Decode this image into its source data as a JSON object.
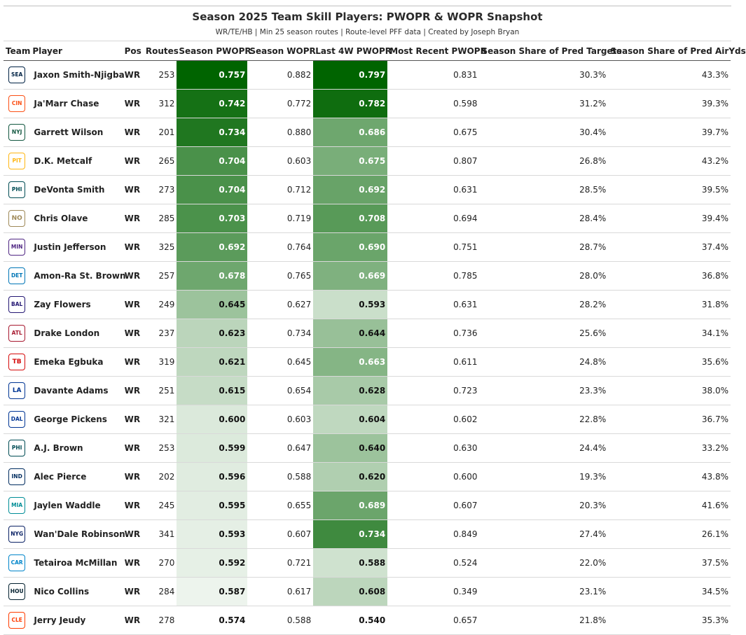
{
  "header": {
    "title": "Season 2025 Team Skill Players: PWOPR & WOPR Snapshot",
    "subtitle": "WR/TE/HB | Min 25 season routes | Route-level PFF data | Created by Joseph Bryan"
  },
  "columns": [
    "Team",
    "Player",
    "Pos",
    "Routes",
    "Season PWOPR",
    "Season WOPR",
    "Last 4W PWOPR",
    "Most Recent PWOPR",
    "Season Share of Pred Targets",
    "Season Share of Pred AirYds"
  ],
  "rows": [
    {
      "team_icon": "seahawks-logo-icon",
      "team_color": "#002244",
      "team_abbr": "SEA",
      "player": "Jaxon Smith-Njigba",
      "pos": "WR",
      "routes": "253",
      "season_pwopr": "0.757",
      "season_wopr": "0.882",
      "last4w_pwopr": "0.797",
      "recent_pwopr": "0.831",
      "share_targets": "30.3%",
      "share_airyds": "43.3%"
    },
    {
      "team_icon": "bengals-logo-icon",
      "team_color": "#FB4F14",
      "team_abbr": "CIN",
      "player": "Ja'Marr Chase",
      "pos": "WR",
      "routes": "312",
      "season_pwopr": "0.742",
      "season_wopr": "0.772",
      "last4w_pwopr": "0.782",
      "recent_pwopr": "0.598",
      "share_targets": "31.2%",
      "share_airyds": "39.3%"
    },
    {
      "team_icon": "jets-logo-icon",
      "team_color": "#125740",
      "team_abbr": "NYJ",
      "player": "Garrett Wilson",
      "pos": "WR",
      "routes": "201",
      "season_pwopr": "0.734",
      "season_wopr": "0.880",
      "last4w_pwopr": "0.686",
      "recent_pwopr": "0.675",
      "share_targets": "30.4%",
      "share_airyds": "39.7%"
    },
    {
      "team_icon": "steelers-logo-icon",
      "team_color": "#FFB612",
      "team_abbr": "PIT",
      "player": "D.K. Metcalf",
      "pos": "WR",
      "routes": "265",
      "season_pwopr": "0.704",
      "season_wopr": "0.603",
      "last4w_pwopr": "0.675",
      "recent_pwopr": "0.807",
      "share_targets": "26.8%",
      "share_airyds": "43.2%"
    },
    {
      "team_icon": "eagles-logo-icon",
      "team_color": "#004C54",
      "team_abbr": "PHI",
      "player": "DeVonta Smith",
      "pos": "WR",
      "routes": "273",
      "season_pwopr": "0.704",
      "season_wopr": "0.712",
      "last4w_pwopr": "0.692",
      "recent_pwopr": "0.631",
      "share_targets": "28.5%",
      "share_airyds": "39.5%"
    },
    {
      "team_icon": "saints-logo-icon",
      "team_color": "#9F8958",
      "team_abbr": "NO",
      "player": "Chris Olave",
      "pos": "WR",
      "routes": "285",
      "season_pwopr": "0.703",
      "season_wopr": "0.719",
      "last4w_pwopr": "0.708",
      "recent_pwopr": "0.694",
      "share_targets": "28.4%",
      "share_airyds": "39.4%"
    },
    {
      "team_icon": "vikings-logo-icon",
      "team_color": "#4F2683",
      "team_abbr": "MIN",
      "player": "Justin Jefferson",
      "pos": "WR",
      "routes": "325",
      "season_pwopr": "0.692",
      "season_wopr": "0.764",
      "last4w_pwopr": "0.690",
      "recent_pwopr": "0.751",
      "share_targets": "28.7%",
      "share_airyds": "37.4%"
    },
    {
      "team_icon": "lions-logo-icon",
      "team_color": "#0076B6",
      "team_abbr": "DET",
      "player": "Amon-Ra St. Brown",
      "pos": "WR",
      "routes": "257",
      "season_pwopr": "0.678",
      "season_wopr": "0.765",
      "last4w_pwopr": "0.669",
      "recent_pwopr": "0.785",
      "share_targets": "28.0%",
      "share_airyds": "36.8%"
    },
    {
      "team_icon": "ravens-logo-icon",
      "team_color": "#241773",
      "team_abbr": "BAL",
      "player": "Zay Flowers",
      "pos": "WR",
      "routes": "249",
      "season_pwopr": "0.645",
      "season_wopr": "0.627",
      "last4w_pwopr": "0.593",
      "recent_pwopr": "0.631",
      "share_targets": "28.2%",
      "share_airyds": "31.8%"
    },
    {
      "team_icon": "falcons-logo-icon",
      "team_color": "#A71930",
      "team_abbr": "ATL",
      "player": "Drake London",
      "pos": "WR",
      "routes": "237",
      "season_pwopr": "0.623",
      "season_wopr": "0.734",
      "last4w_pwopr": "0.644",
      "recent_pwopr": "0.736",
      "share_targets": "25.6%",
      "share_airyds": "34.1%"
    },
    {
      "team_icon": "buccaneers-logo-icon",
      "team_color": "#D50A0A",
      "team_abbr": "TB",
      "player": "Emeka Egbuka",
      "pos": "WR",
      "routes": "319",
      "season_pwopr": "0.621",
      "season_wopr": "0.645",
      "last4w_pwopr": "0.663",
      "recent_pwopr": "0.611",
      "share_targets": "24.8%",
      "share_airyds": "35.6%"
    },
    {
      "team_icon": "rams-logo-icon",
      "team_color": "#003594",
      "team_abbr": "LA",
      "player": "Davante Adams",
      "pos": "WR",
      "routes": "251",
      "season_pwopr": "0.615",
      "season_wopr": "0.654",
      "last4w_pwopr": "0.628",
      "recent_pwopr": "0.723",
      "share_targets": "23.3%",
      "share_airyds": "38.0%"
    },
    {
      "team_icon": "cowboys-logo-icon",
      "team_color": "#003594",
      "team_abbr": "DAL",
      "player": "George Pickens",
      "pos": "WR",
      "routes": "321",
      "season_pwopr": "0.600",
      "season_wopr": "0.603",
      "last4w_pwopr": "0.604",
      "recent_pwopr": "0.602",
      "share_targets": "22.8%",
      "share_airyds": "36.7%"
    },
    {
      "team_icon": "eagles-logo-icon",
      "team_color": "#004C54",
      "team_abbr": "PHI",
      "player": "A.J. Brown",
      "pos": "WR",
      "routes": "253",
      "season_pwopr": "0.599",
      "season_wopr": "0.647",
      "last4w_pwopr": "0.640",
      "recent_pwopr": "0.630",
      "share_targets": "24.4%",
      "share_airyds": "33.2%"
    },
    {
      "team_icon": "colts-logo-icon",
      "team_color": "#002C5F",
      "team_abbr": "IND",
      "player": "Alec Pierce",
      "pos": "WR",
      "routes": "202",
      "season_pwopr": "0.596",
      "season_wopr": "0.588",
      "last4w_pwopr": "0.620",
      "recent_pwopr": "0.600",
      "share_targets": "19.3%",
      "share_airyds": "43.8%"
    },
    {
      "team_icon": "dolphins-logo-icon",
      "team_color": "#008E97",
      "team_abbr": "MIA",
      "player": "Jaylen Waddle",
      "pos": "WR",
      "routes": "245",
      "season_pwopr": "0.595",
      "season_wopr": "0.655",
      "last4w_pwopr": "0.689",
      "recent_pwopr": "0.607",
      "share_targets": "20.3%",
      "share_airyds": "41.6%"
    },
    {
      "team_icon": "giants-logo-icon",
      "team_color": "#0B2265",
      "team_abbr": "NYG",
      "player": "Wan'Dale Robinson",
      "pos": "WR",
      "routes": "341",
      "season_pwopr": "0.593",
      "season_wopr": "0.607",
      "last4w_pwopr": "0.734",
      "recent_pwopr": "0.849",
      "share_targets": "27.4%",
      "share_airyds": "26.1%"
    },
    {
      "team_icon": "panthers-logo-icon",
      "team_color": "#0085CA",
      "team_abbr": "CAR",
      "player": "Tetairoa McMillan",
      "pos": "WR",
      "routes": "270",
      "season_pwopr": "0.592",
      "season_wopr": "0.721",
      "last4w_pwopr": "0.588",
      "recent_pwopr": "0.524",
      "share_targets": "22.0%",
      "share_airyds": "37.5%"
    },
    {
      "team_icon": "texans-logo-icon",
      "team_color": "#03202F",
      "team_abbr": "HOU",
      "player": "Nico Collins",
      "pos": "WR",
      "routes": "284",
      "season_pwopr": "0.587",
      "season_wopr": "0.617",
      "last4w_pwopr": "0.608",
      "recent_pwopr": "0.349",
      "share_targets": "23.1%",
      "share_airyds": "34.5%"
    },
    {
      "team_icon": "browns-logo-icon",
      "team_color": "#FF3C00",
      "team_abbr": "CLE",
      "player": "Jerry Jeudy",
      "pos": "WR",
      "routes": "278",
      "season_pwopr": "0.574",
      "season_wopr": "0.588",
      "last4w_pwopr": "0.540",
      "recent_pwopr": "0.657",
      "share_targets": "21.8%",
      "share_airyds": "35.3%"
    }
  ],
  "color_scale": {
    "low": "#ffffff",
    "high": "#006400"
  }
}
